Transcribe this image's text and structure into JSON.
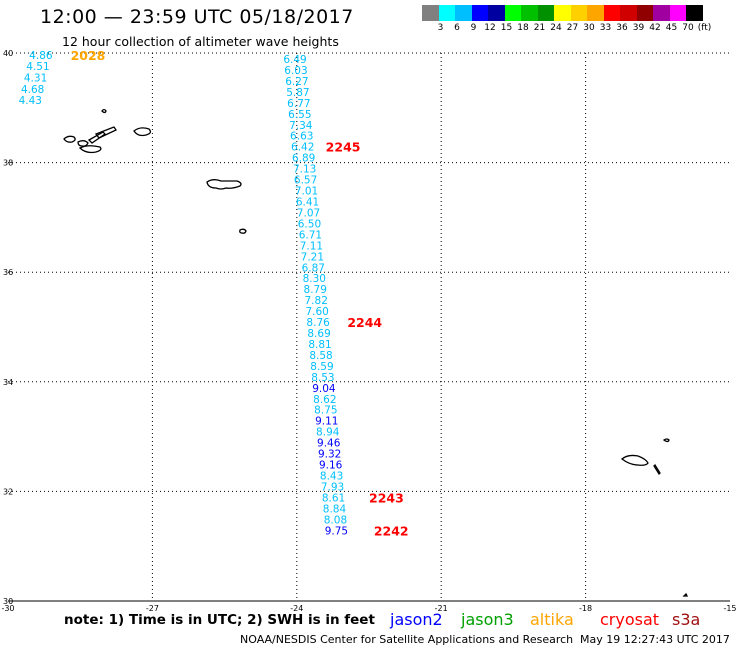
{
  "header": {
    "title": "12:00 — 23:59 UTC 05/18/2017",
    "subtitle": "12 hour collection of altimeter wave heights"
  },
  "legend": {
    "colors": [
      "#808080",
      "#00ffff",
      "#00bfff",
      "#0000ff",
      "#0000a0",
      "#00ff00",
      "#00c000",
      "#009000",
      "#ffff00",
      "#ffd000",
      "#ffa500",
      "#ff0000",
      "#d00000",
      "#900000",
      "#a000a0",
      "#ff00ff",
      "#000000"
    ],
    "labels": [
      "3",
      "6",
      "9",
      "12",
      "15",
      "18",
      "21",
      "24",
      "27",
      "30",
      "33",
      "36",
      "39",
      "42",
      "45",
      "70",
      "(ft)"
    ]
  },
  "map": {
    "lon_ticks": [
      -30,
      -27,
      -24,
      -21,
      -18,
      -15
    ],
    "lat_ticks": [
      30,
      32,
      34,
      36,
      38,
      40
    ],
    "tracks": [
      {
        "points": [
          {
            "t": "4.86",
            "lon": -29.56,
            "lat": 39.96,
            "c": "#00bfff"
          },
          {
            "t": "4.51",
            "lon": -29.62,
            "lat": 39.76,
            "c": "#00bfff"
          },
          {
            "t": "4.31",
            "lon": -29.67,
            "lat": 39.55,
            "c": "#00bfff"
          },
          {
            "t": "4.68",
            "lon": -29.73,
            "lat": 39.34,
            "c": "#00bfff"
          },
          {
            "t": "4.43",
            "lon": -29.78,
            "lat": 39.14,
            "c": "#00bfff"
          }
        ],
        "times": [
          {
            "t": "2028",
            "lon": -28.7,
            "lat": 39.96,
            "c": "#ffa500"
          }
        ]
      },
      {
        "points": [
          {
            "t": "6.49",
            "lon": -24.28,
            "lat": 39.89,
            "c": "#00bfff"
          },
          {
            "t": "6.03",
            "lon": -24.26,
            "lat": 39.69,
            "c": "#00bfff"
          },
          {
            "t": "6.27",
            "lon": -24.24,
            "lat": 39.49,
            "c": "#00bfff"
          },
          {
            "t": "5.87",
            "lon": -24.22,
            "lat": 39.29,
            "c": "#00bfff"
          },
          {
            "t": "6.77",
            "lon": -24.2,
            "lat": 39.09,
            "c": "#00bfff"
          },
          {
            "t": "6.55",
            "lon": -24.18,
            "lat": 38.89,
            "c": "#00bfff"
          },
          {
            "t": "7.34",
            "lon": -24.16,
            "lat": 38.69,
            "c": "#00bfff"
          },
          {
            "t": "6.63",
            "lon": -24.14,
            "lat": 38.49,
            "c": "#00bfff"
          },
          {
            "t": "6.42",
            "lon": -24.12,
            "lat": 38.29,
            "c": "#00bfff"
          },
          {
            "t": "6.89",
            "lon": -24.1,
            "lat": 38.09,
            "c": "#00bfff"
          },
          {
            "t": "7.13",
            "lon": -24.08,
            "lat": 37.89,
            "c": "#00bfff"
          },
          {
            "t": "6.57",
            "lon": -24.06,
            "lat": 37.69,
            "c": "#00bfff"
          },
          {
            "t": "7.01",
            "lon": -24.04,
            "lat": 37.49,
            "c": "#00bfff"
          },
          {
            "t": "6.41",
            "lon": -24.02,
            "lat": 37.29,
            "c": "#00bfff"
          },
          {
            "t": "7.07",
            "lon": -24.0,
            "lat": 37.09,
            "c": "#00bfff"
          },
          {
            "t": "6.50",
            "lon": -23.98,
            "lat": 36.89,
            "c": "#00bfff"
          },
          {
            "t": "6.71",
            "lon": -23.96,
            "lat": 36.69,
            "c": "#00bfff"
          },
          {
            "t": "7.11",
            "lon": -23.94,
            "lat": 36.49,
            "c": "#00bfff"
          },
          {
            "t": "7.21",
            "lon": -23.92,
            "lat": 36.29,
            "c": "#00bfff"
          },
          {
            "t": "6.87",
            "lon": -23.9,
            "lat": 36.09,
            "c": "#00bfff"
          },
          {
            "t": "8.30",
            "lon": -23.88,
            "lat": 35.89,
            "c": "#00bfff"
          },
          {
            "t": "8.79",
            "lon": -23.86,
            "lat": 35.69,
            "c": "#00bfff"
          },
          {
            "t": "7.82",
            "lon": -23.84,
            "lat": 35.49,
            "c": "#00bfff"
          },
          {
            "t": "7.60",
            "lon": -23.82,
            "lat": 35.29,
            "c": "#00bfff"
          },
          {
            "t": "8.76",
            "lon": -23.8,
            "lat": 35.09,
            "c": "#00bfff"
          },
          {
            "t": "8.69",
            "lon": -23.78,
            "lat": 34.89,
            "c": "#00bfff"
          },
          {
            "t": "8.81",
            "lon": -23.76,
            "lat": 34.69,
            "c": "#00bfff"
          },
          {
            "t": "8.58",
            "lon": -23.74,
            "lat": 34.49,
            "c": "#00bfff"
          },
          {
            "t": "8.59",
            "lon": -23.72,
            "lat": 34.29,
            "c": "#00bfff"
          },
          {
            "t": "8.53",
            "lon": -23.7,
            "lat": 34.09,
            "c": "#00bfff"
          },
          {
            "t": "9.04",
            "lon": -23.68,
            "lat": 33.89,
            "c": "#0000ff"
          },
          {
            "t": "8.62",
            "lon": -23.66,
            "lat": 33.69,
            "c": "#00bfff"
          },
          {
            "t": "8.75",
            "lon": -23.64,
            "lat": 33.49,
            "c": "#00bfff"
          },
          {
            "t": "9.11",
            "lon": -23.62,
            "lat": 33.29,
            "c": "#0000ff"
          },
          {
            "t": "8.94",
            "lon": -23.6,
            "lat": 33.09,
            "c": "#00bfff"
          },
          {
            "t": "9.46",
            "lon": -23.58,
            "lat": 32.89,
            "c": "#0000ff"
          },
          {
            "t": "9.32",
            "lon": -23.56,
            "lat": 32.69,
            "c": "#0000ff"
          },
          {
            "t": "9.16",
            "lon": -23.54,
            "lat": 32.49,
            "c": "#0000ff"
          },
          {
            "t": "8.43",
            "lon": -23.52,
            "lat": 32.29,
            "c": "#00bfff"
          },
          {
            "t": "7.93",
            "lon": -23.5,
            "lat": 32.09,
            "c": "#00bfff"
          },
          {
            "t": "8.61",
            "lon": -23.48,
            "lat": 31.89,
            "c": "#00bfff"
          },
          {
            "t": "8.84",
            "lon": -23.46,
            "lat": 31.69,
            "c": "#00bfff"
          },
          {
            "t": "8.08",
            "lon": -23.44,
            "lat": 31.49,
            "c": "#00bfff"
          },
          {
            "t": "9.75",
            "lon": -23.42,
            "lat": 31.29,
            "c": "#0000ff"
          }
        ],
        "times": [
          {
            "t": "2245",
            "lon": -23.4,
            "lat": 38.29,
            "c": "#ff0000"
          },
          {
            "t": "2244",
            "lon": -22.95,
            "lat": 35.09,
            "c": "#ff0000"
          },
          {
            "t": "2243",
            "lon": -22.5,
            "lat": 31.89,
            "c": "#ff0000"
          },
          {
            "t": "2242",
            "lon": -22.4,
            "lat": 31.29,
            "c": "#ff0000"
          }
        ]
      }
    ]
  },
  "note": "note:  1) Time is in UTC;  2) SWH is in feet",
  "satellites": [
    {
      "name": "jason2",
      "color": "#0000ff"
    },
    {
      "name": "jason3",
      "color": "#00a000"
    },
    {
      "name": "altika",
      "color": "#ffa500"
    },
    {
      "name": "cryosat",
      "color": "#ff0000"
    },
    {
      "name": "s3a",
      "color": "#a01010"
    }
  ],
  "footer": {
    "credit": "NOAA/NESDIS Center for Satellite Applications and Research",
    "timestamp": "May 19 12:27:43 UTC 2017"
  }
}
